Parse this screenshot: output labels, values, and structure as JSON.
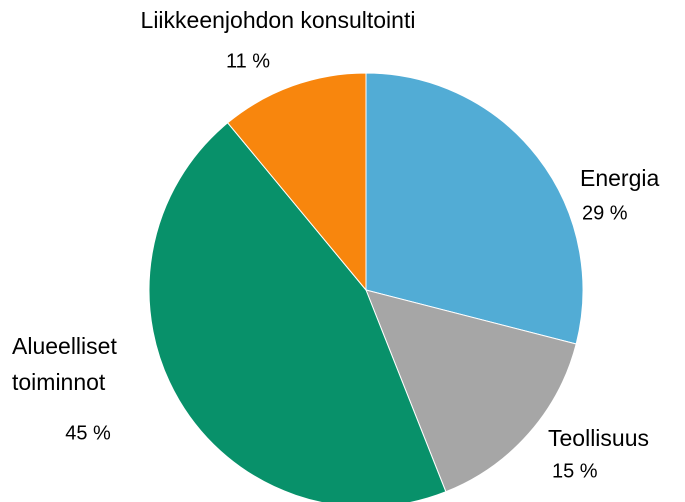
{
  "chart_data": {
    "type": "pie",
    "categories": [
      "Energia",
      "Teollisuus",
      "Alueelliset toiminnot",
      "Liikkeenjohdon konsultointi"
    ],
    "values": [
      29,
      15,
      45,
      11
    ],
    "value_labels": [
      "29 %",
      "15 %",
      "45 %",
      "11 %"
    ],
    "colors": [
      "#52acd5",
      "#a6a6a6",
      "#08916a",
      "#f8860d"
    ]
  }
}
